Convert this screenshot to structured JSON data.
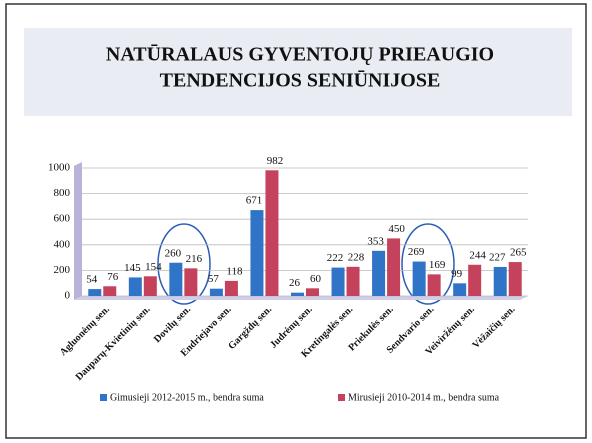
{
  "chart_data": {
    "type": "bar",
    "title": [
      "NATŪRALAUS GYVENTOJŲ PRIEAUGIO",
      "TENDENCIJOS SENIŪNIJOSE"
    ],
    "categories": [
      "Agluonėnų sen.",
      "Dauparų-Kvietinių sen.",
      "Dovilų sen.",
      "Endriejavo sen.",
      "Gargždų sen.",
      "Judrėnų sen.",
      "Kretingalės sen.",
      "Priekulės sen.",
      "Sendvario sen.",
      "Veiviržėnų sen.",
      "Vėžaičių sen."
    ],
    "series": [
      {
        "name": "Gimusieji 2012-2015 m., bendra suma",
        "color": "#2f74c6",
        "values": [
          54,
          145,
          260,
          57,
          671,
          26,
          222,
          353,
          269,
          99,
          227
        ]
      },
      {
        "name": "Mirusieji 2010-2014 m., bendra suma",
        "color": "#c4425c",
        "values": [
          76,
          154,
          216,
          118,
          982,
          60,
          228,
          450,
          169,
          244,
          265
        ]
      }
    ],
    "ylim": [
      0,
      1000
    ],
    "yticks": [
      0,
      200,
      400,
      600,
      800,
      1000
    ],
    "grid": true,
    "legend": "bottom"
  }
}
